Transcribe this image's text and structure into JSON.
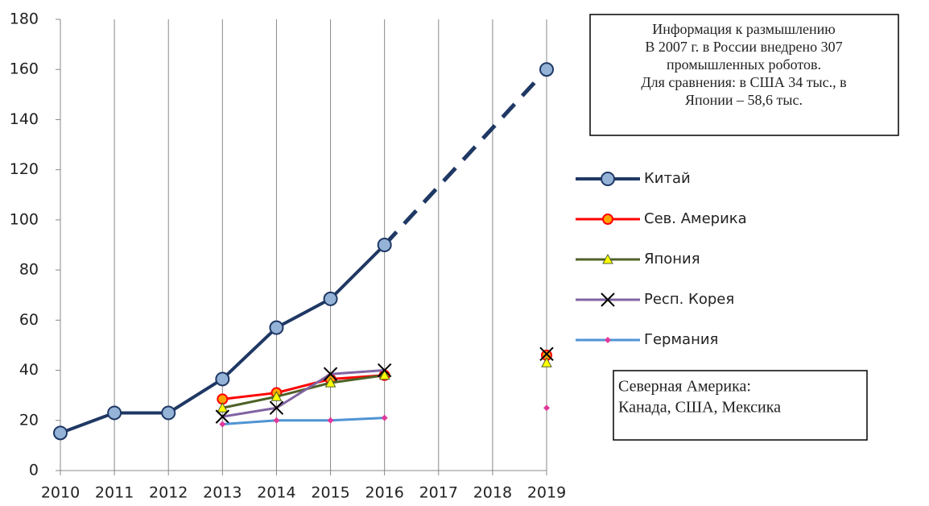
{
  "chart_data": {
    "type": "line",
    "x": [
      2010,
      2011,
      2012,
      2013,
      2014,
      2015,
      2016,
      2017,
      2018,
      2019
    ],
    "xlim": [
      2010,
      2019
    ],
    "xticks": [
      2010,
      2011,
      2012,
      2013,
      2014,
      2015,
      2016,
      2017,
      2018,
      2019
    ],
    "ylim": [
      0,
      180
    ],
    "yticks": [
      0,
      20,
      40,
      60,
      80,
      100,
      120,
      140,
      160,
      180
    ],
    "grid": "x",
    "legend": "right",
    "series": [
      {
        "name": "Китай",
        "color": "#1f3864",
        "marker": "circle",
        "marker_color": "#95b3d7",
        "gap_style": "dashed",
        "values": [
          15,
          23,
          23,
          36.5,
          57,
          68.5,
          90,
          null,
          null,
          160
        ]
      },
      {
        "name": "Сев. Америка",
        "color": "#ff0000",
        "marker": "circle",
        "marker_color": "#ffa500",
        "values": [
          null,
          null,
          null,
          28.5,
          31,
          36.5,
          38,
          null,
          null,
          46
        ]
      },
      {
        "name": "Япония",
        "color": "#4f6228",
        "marker": "triangle",
        "marker_color": "#ffff00",
        "values": [
          null,
          null,
          null,
          25,
          29.5,
          35,
          38,
          null,
          null,
          43
        ]
      },
      {
        "name": "Респ. Корея",
        "color": "#8064a2",
        "marker": "x",
        "marker_color": "#000000",
        "values": [
          null,
          null,
          null,
          21.5,
          25,
          38.5,
          40,
          null,
          null,
          46.5
        ]
      },
      {
        "name": "Германия",
        "color": "#4f94d4",
        "marker": "diamond",
        "marker_color": "#e0399b",
        "values": [
          null,
          null,
          null,
          18.5,
          20,
          20,
          21,
          null,
          null,
          25
        ]
      }
    ],
    "annotations": [
      {
        "lines": [
          "Информация к размышлению",
          "В 2007 г. в России внедрено 307",
          "промышленных роботов.",
          "Для сравнения: в США 34 тыс., в",
          "Японии – 58,6 тыс."
        ]
      },
      {
        "lines": [
          "Северная Америка:",
          "Канада, США, Мексика"
        ]
      }
    ]
  }
}
